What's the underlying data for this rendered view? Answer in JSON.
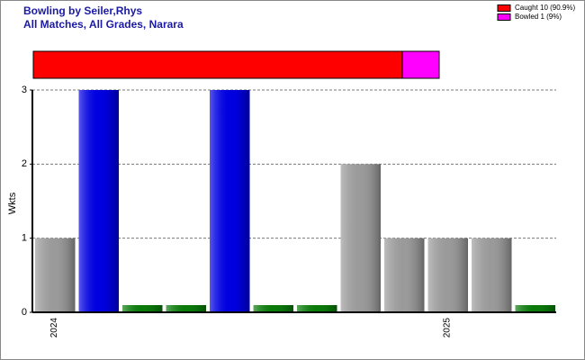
{
  "chart_data": {
    "type": "bar",
    "title": "Bowling by Seiler,Rhys",
    "subtitle": "All Matches, All Grades, Narara",
    "y_label": "Wkts",
    "categories": [
      "2024",
      null,
      null,
      null,
      null,
      null,
      null,
      null,
      null,
      "2025",
      null,
      null
    ],
    "values": [
      1,
      3,
      0,
      0,
      3,
      0,
      0,
      2,
      1,
      1,
      1,
      0
    ],
    "colors": [
      "#9a9a9a",
      "#0000e0",
      "#0a7a0a",
      "#0a7a0a",
      "#0000e0",
      "#0a7a0a",
      "#0a7a0a",
      "#9a9a9a",
      "#9a9a9a",
      "#9a9a9a",
      "#9a9a9a",
      "#0a7a0a"
    ],
    "ylim": [
      0,
      3
    ],
    "yticks": [
      0,
      1,
      2,
      3
    ],
    "grid": true,
    "dismissals": {
      "series": [
        {
          "name": "Caught 10 (90.9%)",
          "color": "#ff0000",
          "values": [
            10
          ]
        },
        {
          "name": "Bowled 1 (9%)",
          "color": "#ff00ff",
          "values": [
            1
          ]
        }
      ]
    }
  }
}
